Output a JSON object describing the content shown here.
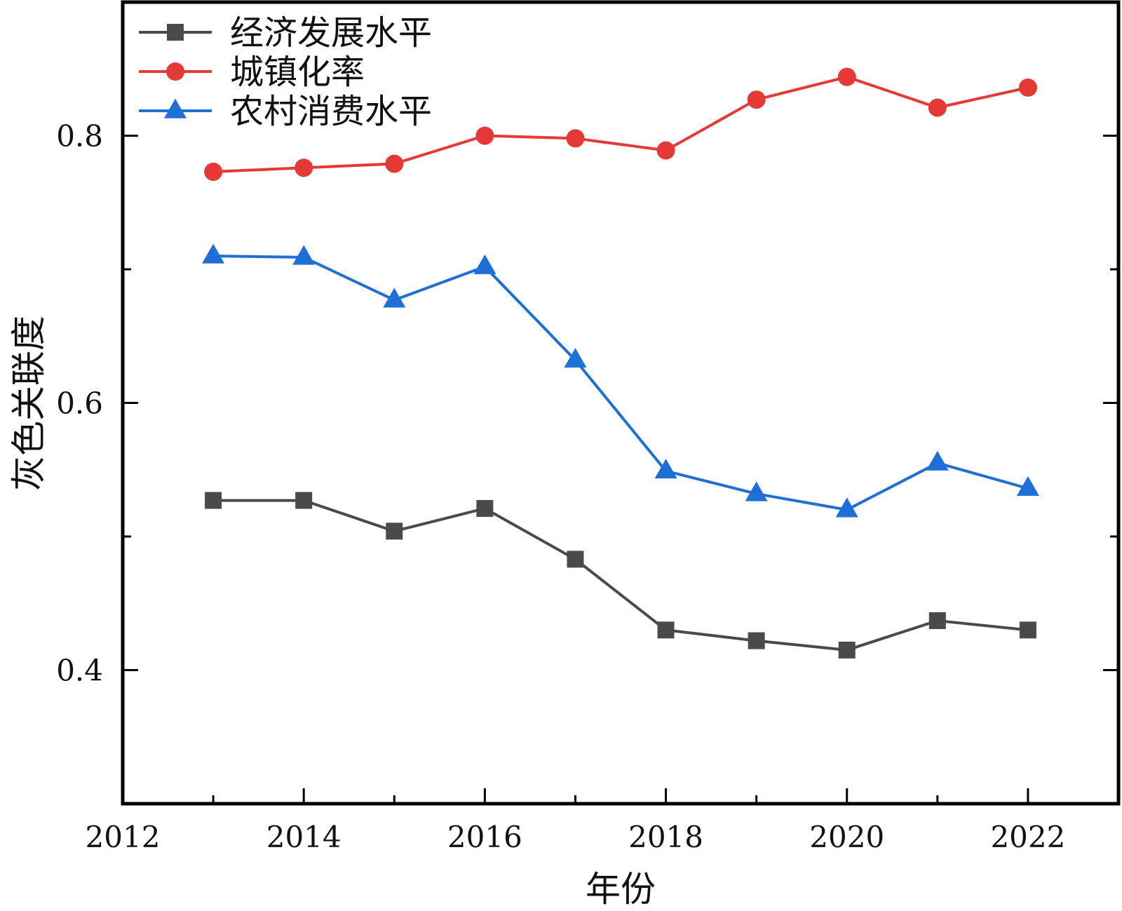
{
  "chart_data": {
    "type": "line",
    "title": "",
    "xlabel": "年份",
    "ylabel": "灰色关联度",
    "xlim": [
      2012,
      2023
    ],
    "ylim": [
      0.3,
      0.9
    ],
    "x_ticks": [
      2012,
      2014,
      2016,
      2018,
      2020,
      2022
    ],
    "y_ticks": [
      0.4,
      0.6,
      0.8
    ],
    "y_tick_labels": [
      "0.4",
      "0.6",
      "0.8"
    ],
    "x_tick_labels": [
      "2012",
      "2014",
      "2016",
      "2018",
      "2020",
      "2022"
    ],
    "minor_y_ticks": [
      0.5,
      0.7
    ],
    "x": [
      2013,
      2014,
      2015,
      2016,
      2017,
      2018,
      2019,
      2020,
      2021,
      2022
    ],
    "legend_position": "top-left",
    "series": [
      {
        "name": "经济发展水平",
        "color": "#4a4a4a",
        "marker": "square",
        "values": [
          0.527,
          0.527,
          0.504,
          0.521,
          0.483,
          0.43,
          0.422,
          0.415,
          0.437,
          0.43
        ]
      },
      {
        "name": "城镇化率",
        "color": "#e53935",
        "marker": "circle",
        "values": [
          0.773,
          0.776,
          0.779,
          0.8,
          0.798,
          0.789,
          0.827,
          0.844,
          0.821,
          0.836
        ]
      },
      {
        "name": "农村消费水平",
        "color": "#1e6fd6",
        "marker": "triangle",
        "values": [
          0.71,
          0.709,
          0.677,
          0.702,
          0.632,
          0.549,
          0.532,
          0.52,
          0.555,
          0.536
        ]
      }
    ]
  }
}
